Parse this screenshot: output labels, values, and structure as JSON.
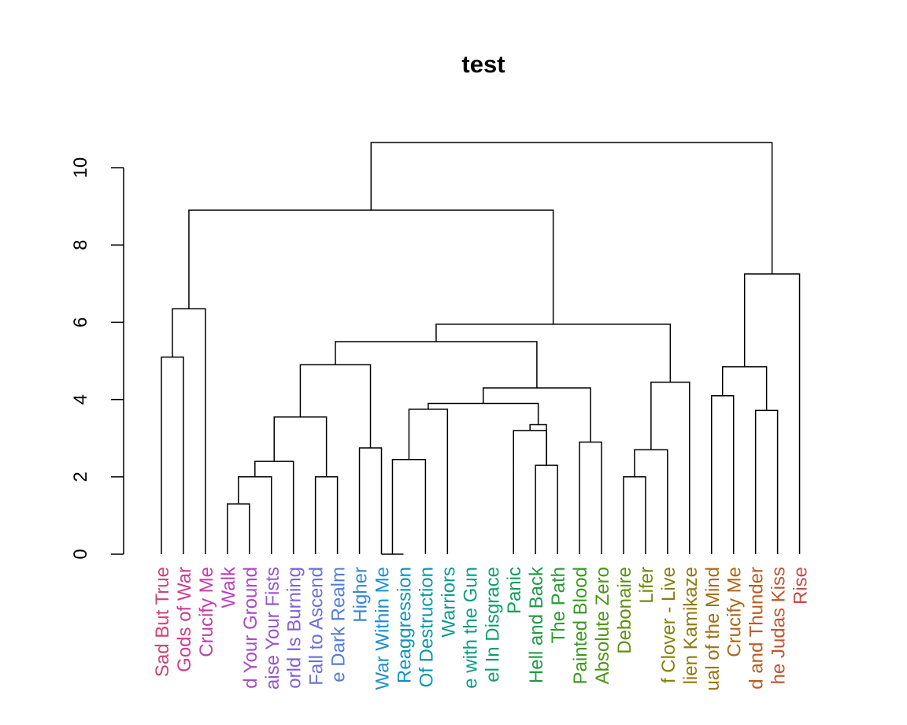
{
  "chart_data": {
    "type": "dendrogram",
    "title": "test",
    "xlabel": "",
    "ylabel": "",
    "ylim": [
      0,
      10.7
    ],
    "yticks": [
      0,
      2,
      4,
      6,
      8,
      10
    ],
    "leaves": [
      {
        "label": "Sad But True",
        "color": "#cc4478"
      },
      {
        "label": "Gods of War",
        "color": "#c93f92"
      },
      {
        "label": "Crucify Me",
        "color": "#c23ea6"
      },
      {
        "label": "Walk",
        "color": "#b843b8"
      },
      {
        "label": "d Your Ground",
        "color": "#a84cc4"
      },
      {
        "label": "aise Your Fists",
        "color": "#9656cc"
      },
      {
        "label": "orld Is Burning",
        "color": "#8062d2"
      },
      {
        "label": "Fall to Ascend",
        "color": "#6a6fd8"
      },
      {
        "label": "e Dark Realm",
        "color": "#4f7ddb"
      },
      {
        "label": "Higher",
        "color": "#3588d8"
      },
      {
        "label": "War Within Me",
        "color": "#1e8fcc"
      },
      {
        "label": "Reaggression",
        "color": "#0f93ba"
      },
      {
        "label": "Of Destruction",
        "color": "#0a97a8"
      },
      {
        "label": "Warriors",
        "color": "#0a9a96"
      },
      {
        "label": "e with the Gun",
        "color": "#0a9c84"
      },
      {
        "label": "el In Disgrace",
        "color": "#0c9e70"
      },
      {
        "label": "Panic",
        "color": "#139e5c"
      },
      {
        "label": "Hell and Back",
        "color": "#1d9d48"
      },
      {
        "label": "The Path",
        "color": "#2a9c34"
      },
      {
        "label": "Painted Blood",
        "color": "#3a9a22"
      },
      {
        "label": "Absolute Zero",
        "color": "#4d9618"
      },
      {
        "label": "Debonaire",
        "color": "#609012"
      },
      {
        "label": "Lifer",
        "color": "#728a0e"
      },
      {
        "label": "f Clover - Live",
        "color": "#83820c"
      },
      {
        "label": "lien Kamikaze",
        "color": "#93790e"
      },
      {
        "label": "ual of the Mind",
        "color": "#a17012"
      },
      {
        "label": "Crucify Me",
        "color": "#ad6616"
      },
      {
        "label": "d and Thunder",
        "color": "#b85c20"
      },
      {
        "label": "he Judas Kiss",
        "color": "#c2532e"
      },
      {
        "label": "Rise",
        "color": "#ca4c44"
      }
    ],
    "merges": [
      {
        "left": 11,
        "right": 12,
        "height": 0.0
      },
      {
        "left": 4,
        "right": 5,
        "height": 1.3
      },
      {
        "left": "n1",
        "right": 6,
        "height": 2.0
      },
      {
        "left": 8,
        "right": 9,
        "height": 2.0
      },
      {
        "left": 22,
        "right": 23,
        "height": 2.0
      },
      {
        "left": "n2",
        "right": 7,
        "height": 2.4
      },
      {
        "left": 18,
        "right": 19,
        "height": 2.3
      },
      {
        "left": "n0",
        "right": 13,
        "height": 2.45
      },
      {
        "left": "n4",
        "right": 24,
        "height": 2.7
      },
      {
        "left": 10,
        "right": 11,
        "height": 2.75
      },
      {
        "left": 20,
        "right": 21,
        "height": 2.9
      },
      {
        "left": 17,
        "right": "n6",
        "height": 3.2
      },
      {
        "left": "n11",
        "right": "n6",
        "height": 3.35
      },
      {
        "left": "n5",
        "right": "n3",
        "height": 3.55
      },
      {
        "left": "n7",
        "right": 14,
        "height": 3.75
      },
      {
        "left": 28,
        "right": 29,
        "height": 3.72
      },
      {
        "left": "n14",
        "right": "n12",
        "height": 3.9
      },
      {
        "left": 26,
        "right": 27,
        "height": 4.1
      },
      {
        "left": "n16",
        "right": "n10",
        "height": 4.3
      },
      {
        "left": "n8",
        "right": 25,
        "height": 4.45
      },
      {
        "left": "n17",
        "right": "n15",
        "height": 4.85
      },
      {
        "left": "n13",
        "right": "n9",
        "height": 4.9
      },
      {
        "left": 1,
        "right": 2,
        "height": 5.1
      },
      {
        "left": "n21",
        "right": "n18",
        "height": 5.5
      },
      {
        "left": "n23",
        "right": "n19",
        "height": 5.95
      },
      {
        "left": "n22",
        "right": 3,
        "height": 6.35
      },
      {
        "left": "n20",
        "right": 30,
        "height": 7.25
      },
      {
        "left": "n25",
        "right": "n24",
        "height": 8.9
      },
      {
        "left": "n27",
        "right": "n26",
        "height": 10.65
      }
    ]
  }
}
